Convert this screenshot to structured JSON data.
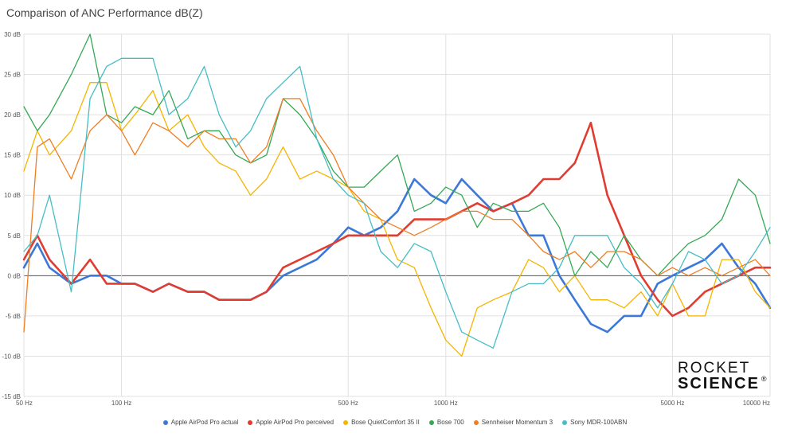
{
  "chart_data": {
    "type": "line",
    "title": "Comparison of ANC Performance dB(Z)",
    "xscale": "log",
    "xlim": [
      50,
      10000
    ],
    "ylim": [
      -15,
      30
    ],
    "grid": true,
    "legend_position": "bottom",
    "x_ticks": [
      {
        "value": 50,
        "label": "50 Hz"
      },
      {
        "value": 100,
        "label": "100 Hz"
      },
      {
        "value": 500,
        "label": "500 Hz"
      },
      {
        "value": 1000,
        "label": "1000 Hz"
      },
      {
        "value": 5000,
        "label": "5000 Hz"
      },
      {
        "value": 10000,
        "label": "10000 Hz"
      }
    ],
    "y_ticks": [
      {
        "value": 30,
        "label": "30 dB"
      },
      {
        "value": 25,
        "label": "25 dB"
      },
      {
        "value": 20,
        "label": "20 dB"
      },
      {
        "value": 15,
        "label": "15 dB"
      },
      {
        "value": 10,
        "label": "10 dB"
      },
      {
        "value": 5,
        "label": "5 dB"
      },
      {
        "value": 0,
        "label": "0 dB"
      },
      {
        "value": -5,
        "label": "-5 dB"
      },
      {
        "value": -10,
        "label": "-10 dB"
      },
      {
        "value": -15,
        "label": "-15 dB"
      }
    ],
    "x": [
      50,
      55,
      60,
      70,
      80,
      90,
      100,
      110,
      125,
      140,
      160,
      180,
      200,
      225,
      250,
      280,
      315,
      355,
      400,
      450,
      500,
      560,
      630,
      710,
      800,
      900,
      1000,
      1120,
      1250,
      1400,
      1600,
      1800,
      2000,
      2240,
      2500,
      2800,
      3150,
      3550,
      4000,
      4500,
      5000,
      5600,
      6300,
      7100,
      8000,
      9000,
      10000
    ],
    "series": [
      {
        "name": "Apple AirPod Pro actual",
        "color": "#3c78d8",
        "width": 2.6,
        "values": [
          1,
          4,
          1,
          -1,
          0,
          0,
          -1,
          -1,
          -2,
          -1,
          -2,
          -2,
          -3,
          -3,
          -3,
          -2,
          0,
          1,
          2,
          4,
          6,
          5,
          6,
          8,
          12,
          10,
          9,
          12,
          10,
          8,
          9,
          5,
          5,
          0,
          -3,
          -6,
          -7,
          -5,
          -5,
          -1,
          0,
          1,
          2,
          4,
          1,
          -1,
          -4
        ]
      },
      {
        "name": "Apple AirPod Pro perceived",
        "color": "#e03c31",
        "width": 2.6,
        "values": [
          2,
          5,
          2,
          -1,
          2,
          -1,
          -1,
          -1,
          -2,
          -1,
          -2,
          -2,
          -3,
          -3,
          -3,
          -2,
          1,
          2,
          3,
          4,
          5,
          5,
          5,
          5,
          7,
          7,
          7,
          8,
          9,
          8,
          9,
          10,
          12,
          12,
          14,
          19,
          10,
          5,
          0,
          -3,
          -5,
          -4,
          -2,
          -1,
          0,
          1,
          1
        ]
      },
      {
        "name": "Bose QuietComfort 35 II",
        "color": "#f4b400",
        "width": 1.3,
        "values": [
          13,
          18,
          15,
          18,
          24,
          24,
          18,
          20,
          23,
          18,
          20,
          16,
          14,
          13,
          10,
          12,
          16,
          12,
          13,
          12,
          11,
          8,
          7,
          2,
          1,
          -4,
          -8,
          -10,
          -4,
          -3,
          -2,
          2,
          1,
          -2,
          0,
          -3,
          -3,
          -4,
          -2,
          -5,
          -1,
          -5,
          -5,
          2,
          2,
          -2,
          -4
        ]
      },
      {
        "name": "Bose 700",
        "color": "#34a853",
        "width": 1.3,
        "values": [
          21,
          18,
          20,
          25,
          30,
          20,
          19,
          21,
          20,
          23,
          17,
          18,
          18,
          15,
          14,
          15,
          22,
          20,
          17,
          13,
          11,
          11,
          13,
          15,
          8,
          9,
          11,
          10,
          6,
          9,
          8,
          8,
          9,
          6,
          0,
          3,
          1,
          5,
          2,
          0,
          2,
          4,
          5,
          7,
          12,
          10,
          4
        ]
      },
      {
        "name": "Sennheiser Momentum 3",
        "color": "#ef7d22",
        "width": 1.3,
        "values": [
          -7,
          16,
          17,
          12,
          18,
          20,
          18,
          15,
          19,
          18,
          16,
          18,
          17,
          17,
          14,
          16,
          22,
          22,
          18,
          15,
          11,
          9,
          7,
          6,
          5,
          6,
          7,
          8,
          8,
          7,
          7,
          5,
          3,
          2,
          3,
          1,
          3,
          3,
          2,
          0,
          1,
          0,
          1,
          0,
          1,
          2,
          0
        ]
      },
      {
        "name": "Sony MDR-100ABN",
        "color": "#46bdc6",
        "width": 1.3,
        "values": [
          3,
          5,
          10,
          -2,
          22,
          26,
          27,
          27,
          27,
          20,
          22,
          26,
          20,
          16,
          18,
          22,
          24,
          26,
          17,
          12,
          10,
          9,
          3,
          1,
          4,
          3,
          -2,
          -7,
          -8,
          -9,
          -2,
          -1,
          -1,
          1,
          5,
          5,
          5,
          1,
          -1,
          -4,
          -1,
          3,
          2,
          -1,
          0,
          3,
          6
        ]
      }
    ]
  },
  "logo": {
    "line1": "ROCKET",
    "line2": "SCIENCE",
    "mark": "®"
  }
}
